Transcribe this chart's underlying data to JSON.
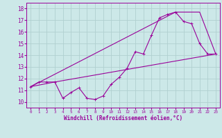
{
  "background_color": "#cce8e8",
  "grid_color": "#aacccc",
  "line_color": "#990099",
  "xlabel": "Windchill (Refroidissement éolien,°C)",
  "ylabel_ticks": [
    10,
    11,
    12,
    13,
    14,
    15,
    16,
    17,
    18
  ],
  "xlabel_ticks": [
    0,
    1,
    2,
    3,
    4,
    5,
    6,
    7,
    8,
    9,
    10,
    11,
    12,
    13,
    14,
    15,
    16,
    17,
    18,
    19,
    20,
    21,
    22,
    23
  ],
  "xlim": [
    -0.5,
    23.5
  ],
  "ylim": [
    9.5,
    18.5
  ],
  "line1_x": [
    0,
    1,
    2,
    3,
    4,
    5,
    6,
    7,
    8,
    9,
    10,
    11,
    12,
    13,
    14,
    15,
    16,
    17,
    18,
    19,
    20,
    21,
    22,
    23
  ],
  "line1_y": [
    11.3,
    11.7,
    11.7,
    11.7,
    10.3,
    10.8,
    11.2,
    10.3,
    10.2,
    10.5,
    11.5,
    12.1,
    12.9,
    14.3,
    14.1,
    15.7,
    17.2,
    17.5,
    17.7,
    16.9,
    16.7,
    15.0,
    14.1,
    14.1
  ],
  "line2_x": [
    0,
    3,
    23
  ],
  "line2_y": [
    11.3,
    11.7,
    14.1
  ],
  "line3_x": [
    0,
    18,
    21,
    23
  ],
  "line3_y": [
    11.3,
    17.7,
    17.7,
    14.1
  ],
  "figsize": [
    3.2,
    2.0
  ],
  "dpi": 100
}
